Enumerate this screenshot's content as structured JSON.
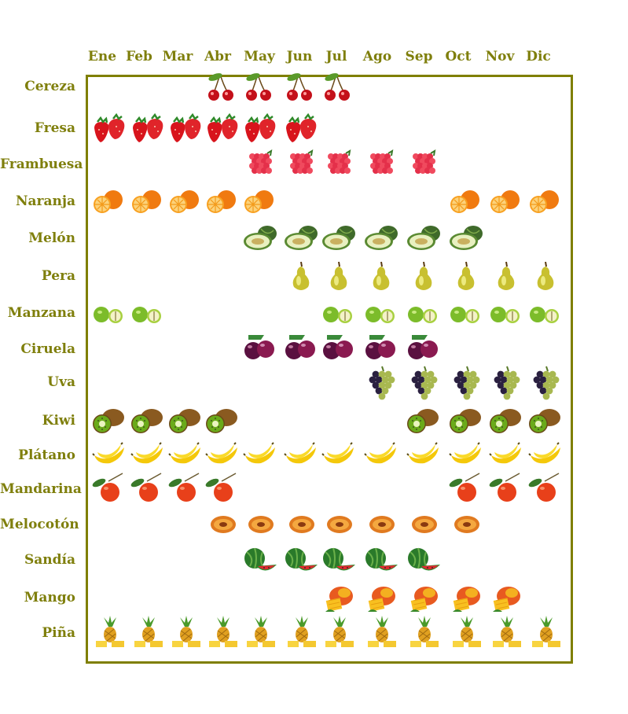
{
  "months": [
    "Ene",
    "Feb",
    "Mar",
    "Abr",
    "May",
    "Jun",
    "Jul",
    "Ago",
    "Sep",
    "Oct",
    "Nov",
    "Dic"
  ],
  "fruits": [
    {
      "name": "Cereza",
      "icon": "cherry-icon",
      "months": [
        4,
        5,
        6,
        7
      ]
    },
    {
      "name": "Fresa",
      "icon": "strawberry-icon",
      "months": [
        1,
        2,
        3,
        4,
        5,
        6
      ]
    },
    {
      "name": "Frambuesa",
      "icon": "raspberry-icon",
      "months": [
        5,
        6,
        7,
        8,
        9
      ]
    },
    {
      "name": "Naranja",
      "icon": "orange-icon",
      "months": [
        1,
        2,
        3,
        4,
        5,
        10,
        11,
        12
      ]
    },
    {
      "name": "Melón",
      "icon": "melon-icon",
      "months": [
        5,
        6,
        7,
        8,
        9,
        10
      ]
    },
    {
      "name": "Pera",
      "icon": "pear-icon",
      "months": [
        6,
        7,
        8,
        9,
        10,
        11,
        12
      ]
    },
    {
      "name": "Manzana",
      "icon": "apple-icon",
      "months": [
        1,
        2,
        7,
        8,
        9,
        10,
        11,
        12
      ]
    },
    {
      "name": "Ciruela",
      "icon": "plum-icon",
      "months": [
        5,
        6,
        7,
        8,
        9
      ]
    },
    {
      "name": "Uva",
      "icon": "grapes-icon",
      "months": [
        8,
        9,
        10,
        11,
        12
      ]
    },
    {
      "name": "Kiwi",
      "icon": "kiwi-icon",
      "months": [
        1,
        2,
        3,
        4,
        9,
        10,
        11,
        12
      ]
    },
    {
      "name": "Plátano",
      "icon": "banana-icon",
      "months": [
        1,
        2,
        3,
        4,
        5,
        6,
        7,
        8,
        9,
        10,
        11,
        12
      ]
    },
    {
      "name": "Mandarina",
      "icon": "mandarin-icon",
      "months": [
        1,
        2,
        3,
        4,
        10,
        11,
        12
      ]
    },
    {
      "name": "Melocotón",
      "icon": "peach-icon",
      "months": [
        4,
        5,
        6,
        7,
        8,
        9,
        10
      ]
    },
    {
      "name": "Sandía",
      "icon": "watermelon-icon",
      "months": [
        5,
        6,
        7,
        8,
        9
      ]
    },
    {
      "name": "Mango",
      "icon": "mango-icon",
      "months": [
        7,
        8,
        9,
        10,
        11
      ]
    },
    {
      "name": "Piña",
      "icon": "pineapple-icon",
      "months": [
        1,
        2,
        3,
        4,
        5,
        6,
        7,
        8,
        9,
        10,
        11,
        12
      ]
    }
  ],
  "colors": {
    "label": "#7f7f0c",
    "frame": "#7f7f00",
    "background": "#ffffff"
  }
}
